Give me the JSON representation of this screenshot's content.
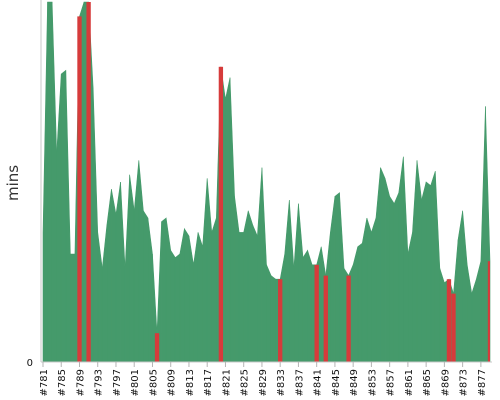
{
  "chart_data": {
    "type": "area",
    "title": "",
    "xlabel": "",
    "ylabel": "mins",
    "y_tick_labels": [
      "0"
    ],
    "ylim": [
      0,
      100
    ],
    "grid": false,
    "colors": {
      "pass": "#459a6b",
      "fail": "#d63b3b"
    },
    "x": [
      "#781",
      "#782",
      "#783",
      "#784",
      "#785",
      "#786",
      "#787",
      "#788",
      "#789",
      "#790",
      "#791",
      "#792",
      "#793",
      "#794",
      "#795",
      "#796",
      "#797",
      "#798",
      "#799",
      "#800",
      "#801",
      "#802",
      "#803",
      "#804",
      "#805",
      "#806",
      "#807",
      "#808",
      "#809",
      "#810",
      "#811",
      "#812",
      "#813",
      "#814",
      "#815",
      "#816",
      "#817",
      "#818",
      "#819",
      "#820",
      "#821",
      "#822",
      "#823",
      "#824",
      "#825",
      "#826",
      "#827",
      "#828",
      "#829",
      "#830",
      "#831",
      "#832",
      "#833",
      "#834",
      "#835",
      "#836",
      "#837",
      "#838",
      "#839",
      "#840",
      "#841",
      "#842",
      "#843",
      "#844",
      "#845",
      "#846",
      "#847",
      "#848",
      "#849",
      "#850",
      "#851",
      "#852",
      "#853",
      "#854",
      "#855",
      "#856",
      "#857",
      "#858",
      "#859",
      "#860",
      "#861",
      "#862",
      "#863",
      "#864",
      "#865",
      "#866",
      "#867",
      "#868",
      "#869",
      "#870",
      "#871",
      "#872",
      "#873",
      "#874",
      "#875",
      "#876",
      "#877",
      "#878",
      "#879"
    ],
    "x_tick_labels": [
      "#781",
      "#785",
      "#789",
      "#793",
      "#797",
      "#801",
      "#805",
      "#809",
      "#813",
      "#817",
      "#821",
      "#825",
      "#829",
      "#833",
      "#837",
      "#841",
      "#845",
      "#849",
      "#853",
      "#857",
      "#861",
      "#865",
      "#869",
      "#873",
      "#877"
    ],
    "values": [
      36,
      100,
      100,
      58,
      80,
      81,
      30,
      30,
      96,
      100,
      100,
      76,
      36,
      26,
      38,
      48,
      41,
      50,
      26,
      52,
      42,
      56,
      42,
      40,
      30,
      8,
      39,
      40,
      31,
      29,
      30,
      37,
      35,
      27,
      36,
      32,
      51,
      36,
      40,
      82,
      73,
      79,
      46,
      36,
      36,
      42,
      38,
      35,
      54,
      27,
      24,
      23,
      23,
      30,
      45,
      26,
      44,
      29,
      31,
      27,
      27,
      32,
      24,
      36,
      46,
      47,
      26,
      24,
      27,
      32,
      33,
      40,
      36,
      40,
      54,
      51,
      46,
      44,
      47,
      57,
      30,
      36,
      56,
      45,
      50,
      49,
      53,
      26,
      22,
      23,
      19,
      34,
      42,
      27,
      19,
      23,
      28,
      71,
      28
    ],
    "status": [
      "pass",
      "pass",
      "pass",
      "pass",
      "pass",
      "pass",
      "pass",
      "pass",
      "fail",
      "pass",
      "fail",
      "pass",
      "pass",
      "pass",
      "pass",
      "pass",
      "pass",
      "pass",
      "pass",
      "pass",
      "pass",
      "pass",
      "pass",
      "pass",
      "pass",
      "fail",
      "pass",
      "pass",
      "pass",
      "pass",
      "pass",
      "pass",
      "pass",
      "pass",
      "pass",
      "pass",
      "pass",
      "pass",
      "pass",
      "fail",
      "pass",
      "pass",
      "pass",
      "pass",
      "pass",
      "pass",
      "pass",
      "pass",
      "pass",
      "pass",
      "pass",
      "pass",
      "fail",
      "pass",
      "pass",
      "pass",
      "pass",
      "pass",
      "pass",
      "pass",
      "fail",
      "pass",
      "fail",
      "pass",
      "pass",
      "pass",
      "pass",
      "fail",
      "pass",
      "pass",
      "pass",
      "pass",
      "pass",
      "pass",
      "pass",
      "pass",
      "pass",
      "pass",
      "pass",
      "pass",
      "pass",
      "pass",
      "pass",
      "pass",
      "pass",
      "pass",
      "pass",
      "pass",
      "pass",
      "fail",
      "fail",
      "pass",
      "pass",
      "pass",
      "pass",
      "pass",
      "pass",
      "pass",
      "fail"
    ]
  }
}
